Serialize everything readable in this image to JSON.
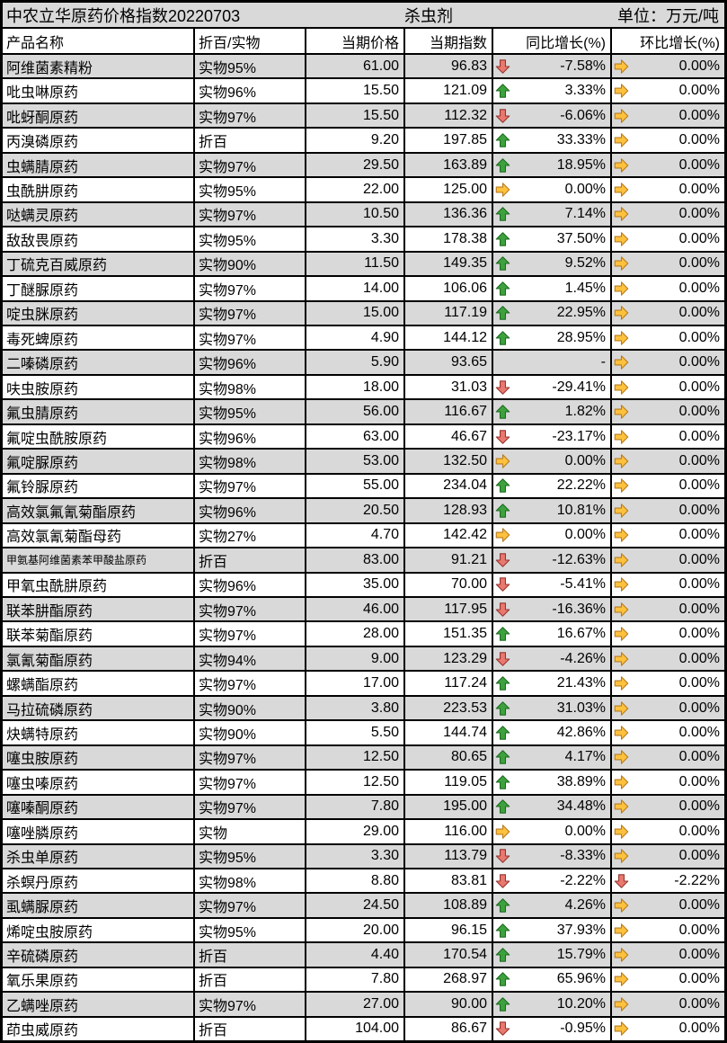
{
  "header": {
    "title": "中农立华原药价格指数20220703",
    "category": "杀虫剂",
    "unit": "单位：万元/吨"
  },
  "colors": {
    "up": "#3da23d",
    "up_border": "#1f6b21",
    "down": "#e9786e",
    "down_border": "#963530",
    "flat": "#fdc13e",
    "flat_border": "#b97c1e",
    "alt_row": "#d9d9d9",
    "title_row": "#d9d9d9",
    "border": "#000000"
  },
  "icons": {
    "up": "up-arrow-icon",
    "down": "down-arrow-icon",
    "flat": "right-arrow-icon"
  },
  "table": {
    "columns": [
      "产品名称",
      "折百/实物",
      "当期价格",
      "当期指数",
      "同比增长(%)",
      "环比增长(%)"
    ],
    "rows": [
      {
        "name": "阿维菌素精粉",
        "spec": "实物95%",
        "price": "61.00",
        "index": "96.83",
        "yoy": {
          "dir": "down",
          "value": "-7.58%"
        },
        "mom": {
          "dir": "flat",
          "value": "0.00%"
        }
      },
      {
        "name": "吡虫啉原药",
        "spec": "实物96%",
        "price": "15.50",
        "index": "121.09",
        "yoy": {
          "dir": "up",
          "value": "3.33%"
        },
        "mom": {
          "dir": "flat",
          "value": "0.00%"
        }
      },
      {
        "name": "吡蚜酮原药",
        "spec": "实物97%",
        "price": "15.50",
        "index": "112.32",
        "yoy": {
          "dir": "down",
          "value": "-6.06%"
        },
        "mom": {
          "dir": "flat",
          "value": "0.00%"
        }
      },
      {
        "name": "丙溴磷原药",
        "spec": "折百",
        "price": "9.20",
        "index": "197.85",
        "yoy": {
          "dir": "up",
          "value": "33.33%"
        },
        "mom": {
          "dir": "flat",
          "value": "0.00%"
        }
      },
      {
        "name": "虫螨腈原药",
        "spec": "实物97%",
        "price": "29.50",
        "index": "163.89",
        "yoy": {
          "dir": "up",
          "value": "18.95%"
        },
        "mom": {
          "dir": "flat",
          "value": "0.00%"
        }
      },
      {
        "name": "虫酰肼原药",
        "spec": "实物95%",
        "price": "22.00",
        "index": "125.00",
        "yoy": {
          "dir": "flat",
          "value": "0.00%"
        },
        "mom": {
          "dir": "flat",
          "value": "0.00%"
        }
      },
      {
        "name": "哒螨灵原药",
        "spec": "实物97%",
        "price": "10.50",
        "index": "136.36",
        "yoy": {
          "dir": "up",
          "value": "7.14%"
        },
        "mom": {
          "dir": "flat",
          "value": "0.00%"
        }
      },
      {
        "name": "敌敌畏原药",
        "spec": "实物95%",
        "price": "3.30",
        "index": "178.38",
        "yoy": {
          "dir": "up",
          "value": "37.50%"
        },
        "mom": {
          "dir": "flat",
          "value": "0.00%"
        }
      },
      {
        "name": "丁硫克百威原药",
        "spec": "实物90%",
        "price": "11.50",
        "index": "149.35",
        "yoy": {
          "dir": "up",
          "value": "9.52%"
        },
        "mom": {
          "dir": "flat",
          "value": "0.00%"
        }
      },
      {
        "name": "丁醚脲原药",
        "spec": "实物97%",
        "price": "14.00",
        "index": "106.06",
        "yoy": {
          "dir": "up",
          "value": "1.45%"
        },
        "mom": {
          "dir": "flat",
          "value": "0.00%"
        }
      },
      {
        "name": "啶虫脒原药",
        "spec": "实物97%",
        "price": "15.00",
        "index": "117.19",
        "yoy": {
          "dir": "up",
          "value": "22.95%"
        },
        "mom": {
          "dir": "flat",
          "value": "0.00%"
        }
      },
      {
        "name": "毒死蜱原药",
        "spec": "实物97%",
        "price": "4.90",
        "index": "144.12",
        "yoy": {
          "dir": "up",
          "value": "28.95%"
        },
        "mom": {
          "dir": "flat",
          "value": "0.00%"
        }
      },
      {
        "name": "二嗪磷原药",
        "spec": "实物96%",
        "price": "5.90",
        "index": "93.65",
        "yoy": {
          "dir": "none",
          "value": "-"
        },
        "mom": {
          "dir": "flat",
          "value": "0.00%"
        }
      },
      {
        "name": "呋虫胺原药",
        "spec": "实物98%",
        "price": "18.00",
        "index": "31.03",
        "yoy": {
          "dir": "down",
          "value": "-29.41%"
        },
        "mom": {
          "dir": "flat",
          "value": "0.00%"
        }
      },
      {
        "name": "氟虫腈原药",
        "spec": "实物95%",
        "price": "56.00",
        "index": "116.67",
        "yoy": {
          "dir": "up",
          "value": "1.82%"
        },
        "mom": {
          "dir": "flat",
          "value": "0.00%"
        }
      },
      {
        "name": "氟啶虫酰胺原药",
        "spec": "实物96%",
        "price": "63.00",
        "index": "46.67",
        "yoy": {
          "dir": "down",
          "value": "-23.17%"
        },
        "mom": {
          "dir": "flat",
          "value": "0.00%"
        }
      },
      {
        "name": "氟啶脲原药",
        "spec": "实物98%",
        "price": "53.00",
        "index": "132.50",
        "yoy": {
          "dir": "flat",
          "value": "0.00%"
        },
        "mom": {
          "dir": "flat",
          "value": "0.00%"
        }
      },
      {
        "name": "氟铃脲原药",
        "spec": "实物97%",
        "price": "55.00",
        "index": "234.04",
        "yoy": {
          "dir": "up",
          "value": "22.22%"
        },
        "mom": {
          "dir": "flat",
          "value": "0.00%"
        }
      },
      {
        "name": "高效氯氟氰菊酯原药",
        "spec": "实物96%",
        "price": "20.50",
        "index": "128.93",
        "yoy": {
          "dir": "up",
          "value": "10.81%"
        },
        "mom": {
          "dir": "flat",
          "value": "0.00%"
        }
      },
      {
        "name": "高效氯氰菊酯母药",
        "spec": "实物27%",
        "price": "4.70",
        "index": "142.42",
        "yoy": {
          "dir": "flat",
          "value": "0.00%"
        },
        "mom": {
          "dir": "flat",
          "value": "0.00%"
        }
      },
      {
        "name": "甲氨基阿维菌素苯甲酸盐原药",
        "spec": "折百",
        "price": "83.00",
        "index": "91.21",
        "yoy": {
          "dir": "down",
          "value": "-12.63%"
        },
        "mom": {
          "dir": "flat",
          "value": "0.00%"
        }
      },
      {
        "name": "甲氧虫酰肼原药",
        "spec": "实物96%",
        "price": "35.00",
        "index": "70.00",
        "yoy": {
          "dir": "down",
          "value": "-5.41%"
        },
        "mom": {
          "dir": "flat",
          "value": "0.00%"
        }
      },
      {
        "name": "联苯肼酯原药",
        "spec": "实物97%",
        "price": "46.00",
        "index": "117.95",
        "yoy": {
          "dir": "down",
          "value": "-16.36%"
        },
        "mom": {
          "dir": "flat",
          "value": "0.00%"
        }
      },
      {
        "name": "联苯菊酯原药",
        "spec": "实物97%",
        "price": "28.00",
        "index": "151.35",
        "yoy": {
          "dir": "up",
          "value": "16.67%"
        },
        "mom": {
          "dir": "flat",
          "value": "0.00%"
        }
      },
      {
        "name": "氯氰菊酯原药",
        "spec": "实物94%",
        "price": "9.00",
        "index": "123.29",
        "yoy": {
          "dir": "down",
          "value": "-4.26%"
        },
        "mom": {
          "dir": "flat",
          "value": "0.00%"
        }
      },
      {
        "name": "螺螨酯原药",
        "spec": "实物97%",
        "price": "17.00",
        "index": "117.24",
        "yoy": {
          "dir": "up",
          "value": "21.43%"
        },
        "mom": {
          "dir": "flat",
          "value": "0.00%"
        }
      },
      {
        "name": "马拉硫磷原药",
        "spec": "实物90%",
        "price": "3.80",
        "index": "223.53",
        "yoy": {
          "dir": "up",
          "value": "31.03%"
        },
        "mom": {
          "dir": "flat",
          "value": "0.00%"
        }
      },
      {
        "name": "炔螨特原药",
        "spec": "实物90%",
        "price": "5.50",
        "index": "144.74",
        "yoy": {
          "dir": "up",
          "value": "42.86%"
        },
        "mom": {
          "dir": "flat",
          "value": "0.00%"
        }
      },
      {
        "name": "噻虫胺原药",
        "spec": "实物97%",
        "price": "12.50",
        "index": "80.65",
        "yoy": {
          "dir": "up",
          "value": "4.17%"
        },
        "mom": {
          "dir": "flat",
          "value": "0.00%"
        }
      },
      {
        "name": "噻虫嗪原药",
        "spec": "实物97%",
        "price": "12.50",
        "index": "119.05",
        "yoy": {
          "dir": "up",
          "value": "38.89%"
        },
        "mom": {
          "dir": "flat",
          "value": "0.00%"
        }
      },
      {
        "name": "噻嗪酮原药",
        "spec": "实物97%",
        "price": "7.80",
        "index": "195.00",
        "yoy": {
          "dir": "up",
          "value": "34.48%"
        },
        "mom": {
          "dir": "flat",
          "value": "0.00%"
        }
      },
      {
        "name": "噻唑膦原药",
        "spec": "实物",
        "price": "29.00",
        "index": "116.00",
        "yoy": {
          "dir": "flat",
          "value": "0.00%"
        },
        "mom": {
          "dir": "flat",
          "value": "0.00%"
        }
      },
      {
        "name": "杀虫单原药",
        "spec": "实物95%",
        "price": "3.30",
        "index": "113.79",
        "yoy": {
          "dir": "down",
          "value": "-8.33%"
        },
        "mom": {
          "dir": "flat",
          "value": "0.00%"
        }
      },
      {
        "name": "杀螟丹原药",
        "spec": "实物98%",
        "price": "8.80",
        "index": "83.81",
        "yoy": {
          "dir": "down",
          "value": "-2.22%"
        },
        "mom": {
          "dir": "down",
          "value": "-2.22%"
        }
      },
      {
        "name": "虱螨脲原药",
        "spec": "实物97%",
        "price": "24.50",
        "index": "108.89",
        "yoy": {
          "dir": "up",
          "value": "4.26%"
        },
        "mom": {
          "dir": "flat",
          "value": "0.00%"
        }
      },
      {
        "name": "烯啶虫胺原药",
        "spec": "实物95%",
        "price": "20.00",
        "index": "96.15",
        "yoy": {
          "dir": "up",
          "value": "37.93%"
        },
        "mom": {
          "dir": "flat",
          "value": "0.00%"
        }
      },
      {
        "name": "辛硫磷原药",
        "spec": "折百",
        "price": "4.40",
        "index": "170.54",
        "yoy": {
          "dir": "up",
          "value": "15.79%"
        },
        "mom": {
          "dir": "flat",
          "value": "0.00%"
        }
      },
      {
        "name": "氧乐果原药",
        "spec": "折百",
        "price": "7.80",
        "index": "268.97",
        "yoy": {
          "dir": "up",
          "value": "65.96%"
        },
        "mom": {
          "dir": "flat",
          "value": "0.00%"
        }
      },
      {
        "name": "乙螨唑原药",
        "spec": "实物97%",
        "price": "27.00",
        "index": "90.00",
        "yoy": {
          "dir": "up",
          "value": "10.20%"
        },
        "mom": {
          "dir": "flat",
          "value": "0.00%"
        }
      },
      {
        "name": "茚虫威原药",
        "spec": "折百",
        "price": "104.00",
        "index": "86.67",
        "yoy": {
          "dir": "down",
          "value": "-0.95%"
        },
        "mom": {
          "dir": "flat",
          "value": "0.00%"
        }
      }
    ]
  }
}
